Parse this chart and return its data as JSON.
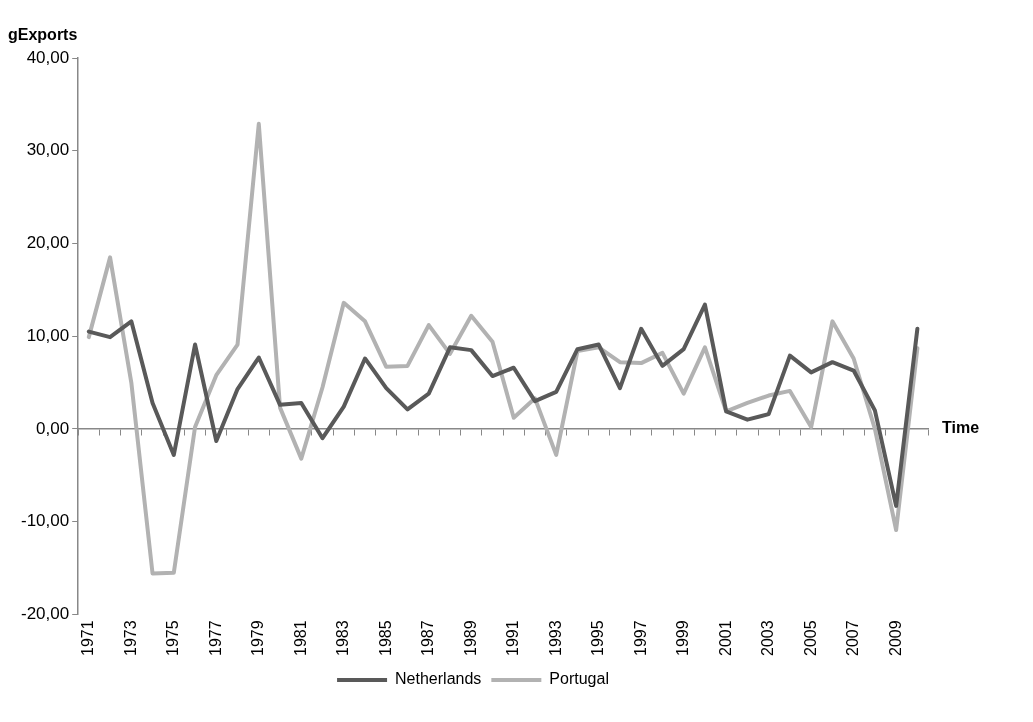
{
  "chart_data": {
    "type": "line",
    "ylabel": "gExports",
    "xlabel": "Time",
    "categories": [
      "1971",
      null,
      "1973",
      null,
      "1975",
      null,
      "1977",
      null,
      "1979",
      null,
      "1981",
      null,
      "1983",
      null,
      "1985",
      null,
      "1987",
      null,
      "1989",
      null,
      "1991",
      null,
      "1993",
      null,
      "1995",
      null,
      "1997",
      null,
      "1999",
      null,
      "2001",
      null,
      "2003",
      null,
      "2005",
      null,
      "2007",
      null,
      "2009",
      null
    ],
    "series": [
      {
        "name": "Netherlands",
        "color": "#595959",
        "values": [
          10.5,
          9.9,
          11.6,
          2.8,
          -2.8,
          9.1,
          -1.3,
          4.3,
          7.7,
          2.6,
          2.8,
          -1.0,
          2.4,
          7.6,
          4.4,
          2.1,
          3.8,
          8.8,
          8.5,
          5.7,
          6.6,
          3.0,
          4.0,
          8.6,
          9.1,
          4.4,
          10.8,
          6.8,
          8.6,
          13.4,
          1.9,
          1.0,
          1.6,
          7.9,
          6.1,
          7.2,
          6.3,
          2.0,
          -8.3,
          10.8
        ]
      },
      {
        "name": "Portugal",
        "color": "#b2b2b2",
        "values": [
          9.9,
          18.5,
          5.0,
          -15.6,
          -15.5,
          0.2,
          5.8,
          9.1,
          32.9,
          2.3,
          -3.2,
          4.5,
          13.6,
          11.6,
          6.7,
          6.8,
          11.2,
          8.1,
          12.2,
          9.4,
          1.2,
          3.3,
          -2.8,
          8.4,
          8.8,
          7.2,
          7.1,
          8.2,
          3.8,
          8.8,
          1.9,
          2.8,
          3.6,
          4.1,
          0.2,
          11.6,
          7.6,
          0.0,
          -10.9,
          8.7
        ]
      }
    ],
    "ylim": [
      -20,
      40
    ],
    "yticks": [
      {
        "value": -20,
        "label": "-20,00"
      },
      {
        "value": -10,
        "label": "-10,00"
      },
      {
        "value": 0,
        "label": "0,00"
      },
      {
        "value": 10,
        "label": "10,00"
      },
      {
        "value": 20,
        "label": "20,00"
      },
      {
        "value": 30,
        "label": "30,00"
      },
      {
        "value": 40,
        "label": "40,00"
      }
    ],
    "legend": "bottom",
    "marker": "none",
    "line_style": "solid"
  }
}
